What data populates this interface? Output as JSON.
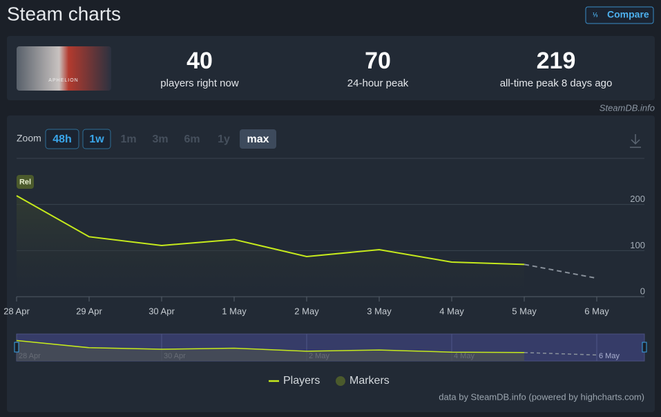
{
  "header": {
    "title": "Steam charts",
    "button": "Compare"
  },
  "game_image": {
    "caption": "APHELION"
  },
  "stats": [
    {
      "value": 40,
      "label": "players right now"
    },
    {
      "value": 70,
      "label": "24-hour peak"
    },
    {
      "value": 219,
      "label": "all-time peak 8 days ago"
    }
  ],
  "source": "SteamDB.info",
  "zoom": {
    "label": "Zoom",
    "options": [
      {
        "label": "48h",
        "state": "available"
      },
      {
        "label": "1w",
        "state": "available"
      },
      {
        "label": "1m",
        "state": "disabled"
      },
      {
        "label": "3m",
        "state": "disabled"
      },
      {
        "label": "6m",
        "state": "disabled"
      },
      {
        "label": "1y",
        "state": "disabled"
      },
      {
        "label": "max",
        "state": "selected"
      }
    ]
  },
  "chart_data": {
    "type": "line",
    "x": [
      "28 Apr",
      "29 Apr",
      "30 Apr",
      "1 May",
      "2 May",
      "3 May",
      "4 May",
      "5 May",
      "6 May"
    ],
    "series": [
      {
        "name": "Players",
        "color": "#c6ea1c",
        "values": [
          219,
          130,
          111,
          124,
          87,
          102,
          75,
          70,
          null
        ],
        "projection": [
          null,
          null,
          null,
          null,
          null,
          null,
          null,
          70,
          40
        ]
      }
    ],
    "markers": {
      "name": "Markers",
      "color": "#4b5a2c",
      "items": [
        {
          "label": "Rel",
          "x_index": 0
        }
      ]
    },
    "ylim": [
      0,
      300
    ],
    "yticks": [
      0,
      100,
      200
    ],
    "grid": true
  },
  "footer": "data by SteamDB.info (powered by highcharts.com)"
}
